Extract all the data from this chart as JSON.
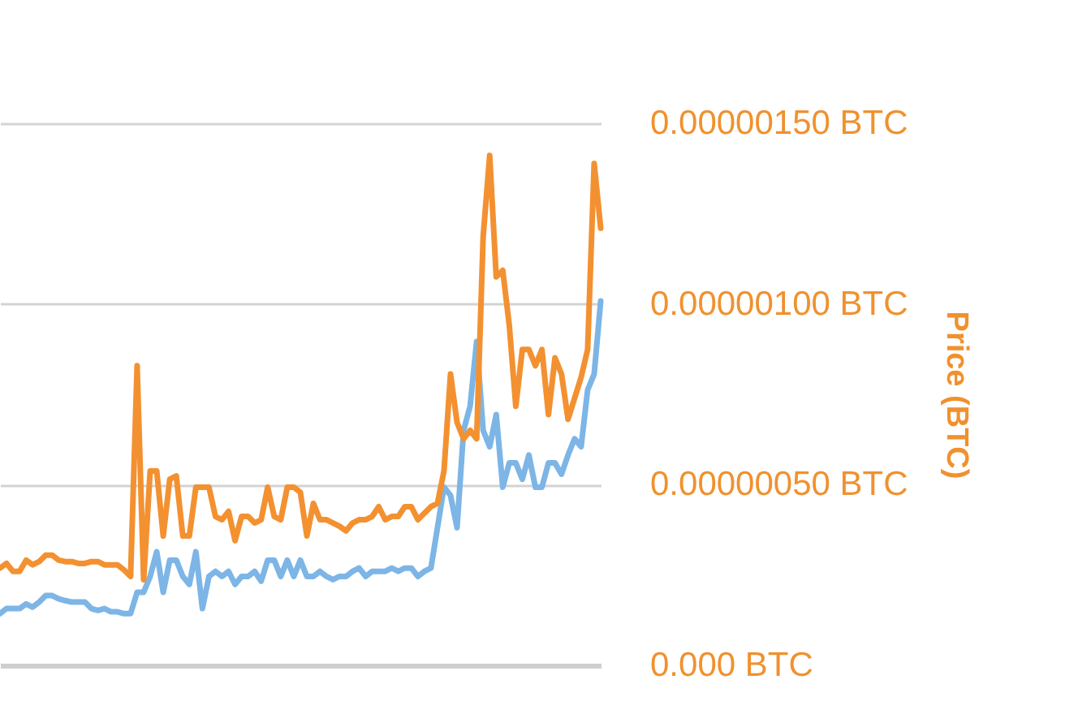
{
  "chart_data": {
    "type": "line",
    "ylabel": "Price (BTC)",
    "ylim": [
      0,
      1.5e-06
    ],
    "yticks": [
      {
        "value": 0,
        "label": "0.000 BTC"
      },
      {
        "value": 5e-07,
        "label": "0.00000050 BTC"
      },
      {
        "value": 1e-06,
        "label": "0.00000100 BTC"
      },
      {
        "value": 1.5e-06,
        "label": "0.00000150 BTC"
      }
    ],
    "grid": "y",
    "tick_labels": "y",
    "categories": [
      null,
      null,
      null,
      null,
      null,
      null,
      null,
      null,
      null,
      null,
      null,
      null,
      null,
      null,
      null,
      null,
      null,
      null,
      null,
      null,
      null,
      null,
      null,
      null,
      null,
      null,
      null,
      null,
      null,
      null,
      null,
      null,
      null,
      null,
      null,
      null,
      null,
      null,
      null,
      null,
      null,
      null,
      null,
      null,
      null,
      null,
      null,
      null,
      null,
      null,
      null,
      null,
      null,
      null,
      null,
      null,
      null,
      null,
      null,
      null,
      null,
      null,
      null,
      null,
      null,
      null,
      null,
      null,
      null,
      null,
      null,
      null,
      null,
      null,
      null,
      null,
      null,
      null,
      null,
      null,
      null,
      null,
      null,
      null,
      null,
      null,
      null,
      null,
      null,
      null,
      null,
      null,
      null
    ],
    "series": [
      {
        "color": "#7db5e6",
        "values": [
          1.43e-07,
          1.57e-07,
          1.57e-07,
          1.57e-07,
          1.7e-07,
          1.61e-07,
          1.75e-07,
          1.93e-07,
          1.93e-07,
          1.84e-07,
          1.79e-07,
          1.75e-07,
          1.75e-07,
          1.75e-07,
          1.57e-07,
          1.52e-07,
          1.57e-07,
          1.48e-07,
          1.48e-07,
          1.43e-07,
          1.43e-07,
          2.02e-07,
          2.02e-07,
          2.46e-07,
          3.14e-07,
          2.02e-07,
          2.91e-07,
          2.91e-07,
          2.46e-07,
          2.24e-07,
          3.14e-07,
          1.57e-07,
          2.46e-07,
          2.6e-07,
          2.46e-07,
          2.6e-07,
          2.24e-07,
          2.46e-07,
          2.46e-07,
          2.6e-07,
          2.33e-07,
          2.91e-07,
          2.91e-07,
          2.46e-07,
          2.91e-07,
          2.46e-07,
          2.91e-07,
          2.46e-07,
          2.46e-07,
          2.6e-07,
          2.46e-07,
          2.37e-07,
          2.46e-07,
          2.46e-07,
          2.6e-07,
          2.69e-07,
          2.46e-07,
          2.6e-07,
          2.6e-07,
          2.6e-07,
          2.69e-07,
          2.6e-07,
          2.69e-07,
          2.69e-07,
          2.46e-07,
          2.6e-07,
          2.69e-07,
          3.81e-07,
          4.93e-07,
          4.7e-07,
          3.81e-07,
          6.5e-07,
          7.17e-07,
          8.96e-07,
          6.5e-07,
          6.05e-07,
          6.94e-07,
          4.93e-07,
          5.6e-07,
          5.6e-07,
          5.15e-07,
          5.82e-07,
          4.93e-07,
          4.93e-07,
          5.6e-07,
          5.6e-07,
          5.29e-07,
          5.82e-07,
          6.27e-07,
          6.05e-07,
          7.62e-07,
          8.06e-07,
          1.008e-06
        ]
      },
      {
        "color": "#f39131",
        "values": [
          2.69e-07,
          2.82e-07,
          2.6e-07,
          2.6e-07,
          2.91e-07,
          2.78e-07,
          2.87e-07,
          3.05e-07,
          3.05e-07,
          2.91e-07,
          2.87e-07,
          2.87e-07,
          2.82e-07,
          2.82e-07,
          2.87e-07,
          2.87e-07,
          2.78e-07,
          2.78e-07,
          2.78e-07,
          2.64e-07,
          2.46e-07,
          8.29e-07,
          2.37e-07,
          5.38e-07,
          5.38e-07,
          3.58e-07,
          5.15e-07,
          5.24e-07,
          3.58e-07,
          3.58e-07,
          4.93e-07,
          4.93e-07,
          4.93e-07,
          4.12e-07,
          4.03e-07,
          4.26e-07,
          3.45e-07,
          4.12e-07,
          4.12e-07,
          3.94e-07,
          4.03e-07,
          4.93e-07,
          4.12e-07,
          4.03e-07,
          4.93e-07,
          4.93e-07,
          4.79e-07,
          3.58e-07,
          4.48e-07,
          4.03e-07,
          4.03e-07,
          3.94e-07,
          3.85e-07,
          3.72e-07,
          3.94e-07,
          4.03e-07,
          4.03e-07,
          4.12e-07,
          4.39e-07,
          4.03e-07,
          4.12e-07,
          4.12e-07,
          4.39e-07,
          4.39e-07,
          4.03e-07,
          4.21e-07,
          4.39e-07,
          4.48e-07,
          5.38e-07,
          8.06e-07,
          6.72e-07,
          6.27e-07,
          6.5e-07,
          6.27e-07,
          1.187e-06,
          1.411e-06,
          1.075e-06,
          1.093e-06,
          9.41e-07,
          7.17e-07,
          8.74e-07,
          8.74e-07,
          8.29e-07,
          8.74e-07,
          6.94e-07,
          8.51e-07,
          8.06e-07,
          6.81e-07,
          7.39e-07,
          7.97e-07,
          8.74e-07,
          1.389e-06,
          1.21e-06
        ]
      }
    ]
  }
}
